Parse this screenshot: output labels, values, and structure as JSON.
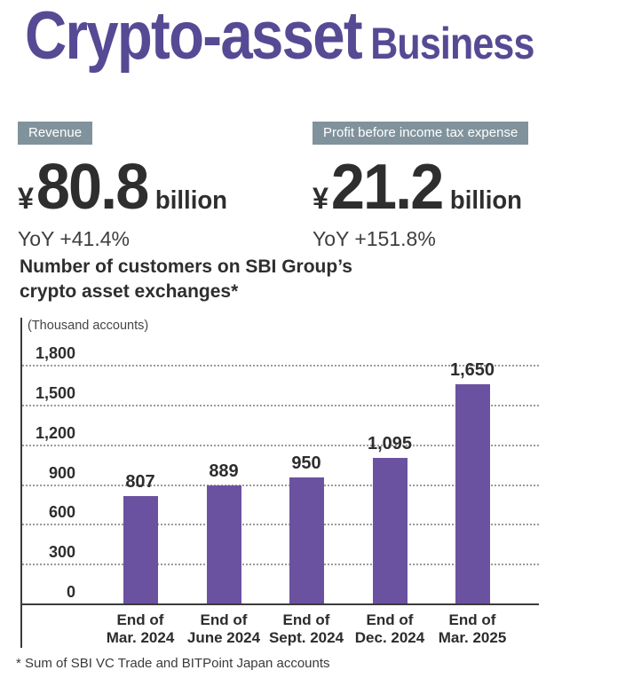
{
  "title": {
    "main": "Crypto-asset",
    "sub": "Business"
  },
  "metrics": [
    {
      "badge": "Revenue",
      "currency": "¥",
      "value": "80.8",
      "unit": "billion",
      "yoy": "YoY +41.4%"
    },
    {
      "badge": "Profit before income tax expense",
      "currency": "¥",
      "value": "21.2",
      "unit": "billion",
      "yoy": "YoY +151.8%"
    }
  ],
  "chart_heading": "Number of customers on SBI Group’s\ncrypto asset exchanges*",
  "chart_data": {
    "type": "bar",
    "title": "Number of customers on SBI Group’s crypto asset exchanges*",
    "unit_label": "(Thousand accounts)",
    "categories": [
      "End of\nMar. 2024",
      "End of\nJune 2024",
      "End of\nSept. 2024",
      "End of\nDec. 2024",
      "End of\nMar. 2025"
    ],
    "values": [
      807,
      889,
      950,
      1095,
      1650
    ],
    "value_labels": [
      "807",
      "889",
      "950",
      "1,095",
      "1,650"
    ],
    "y_ticks": [
      0,
      300,
      600,
      900,
      1200,
      1500,
      1800
    ],
    "y_tick_labels": [
      "0",
      "300",
      "600",
      "900",
      "1,200",
      "1,500",
      "1,800"
    ],
    "ylim": [
      0,
      1800
    ],
    "xlabel": "",
    "ylabel": "(Thousand accounts)",
    "grid": "horizontal dotted",
    "legend": "none",
    "bar_color": "#6b52a0"
  },
  "footnote": "* Sum of SBI VC Trade and BITPoint Japan accounts",
  "colors": {
    "title_purple": "#564a94",
    "bar_purple": "#6b52a0",
    "badge_background": "#80939c",
    "badge_text": "#ffffff",
    "text_dark": "#2e2e2e",
    "gridline_gray": "#9b9b9b",
    "axis_dark": "#3b3b3b"
  }
}
